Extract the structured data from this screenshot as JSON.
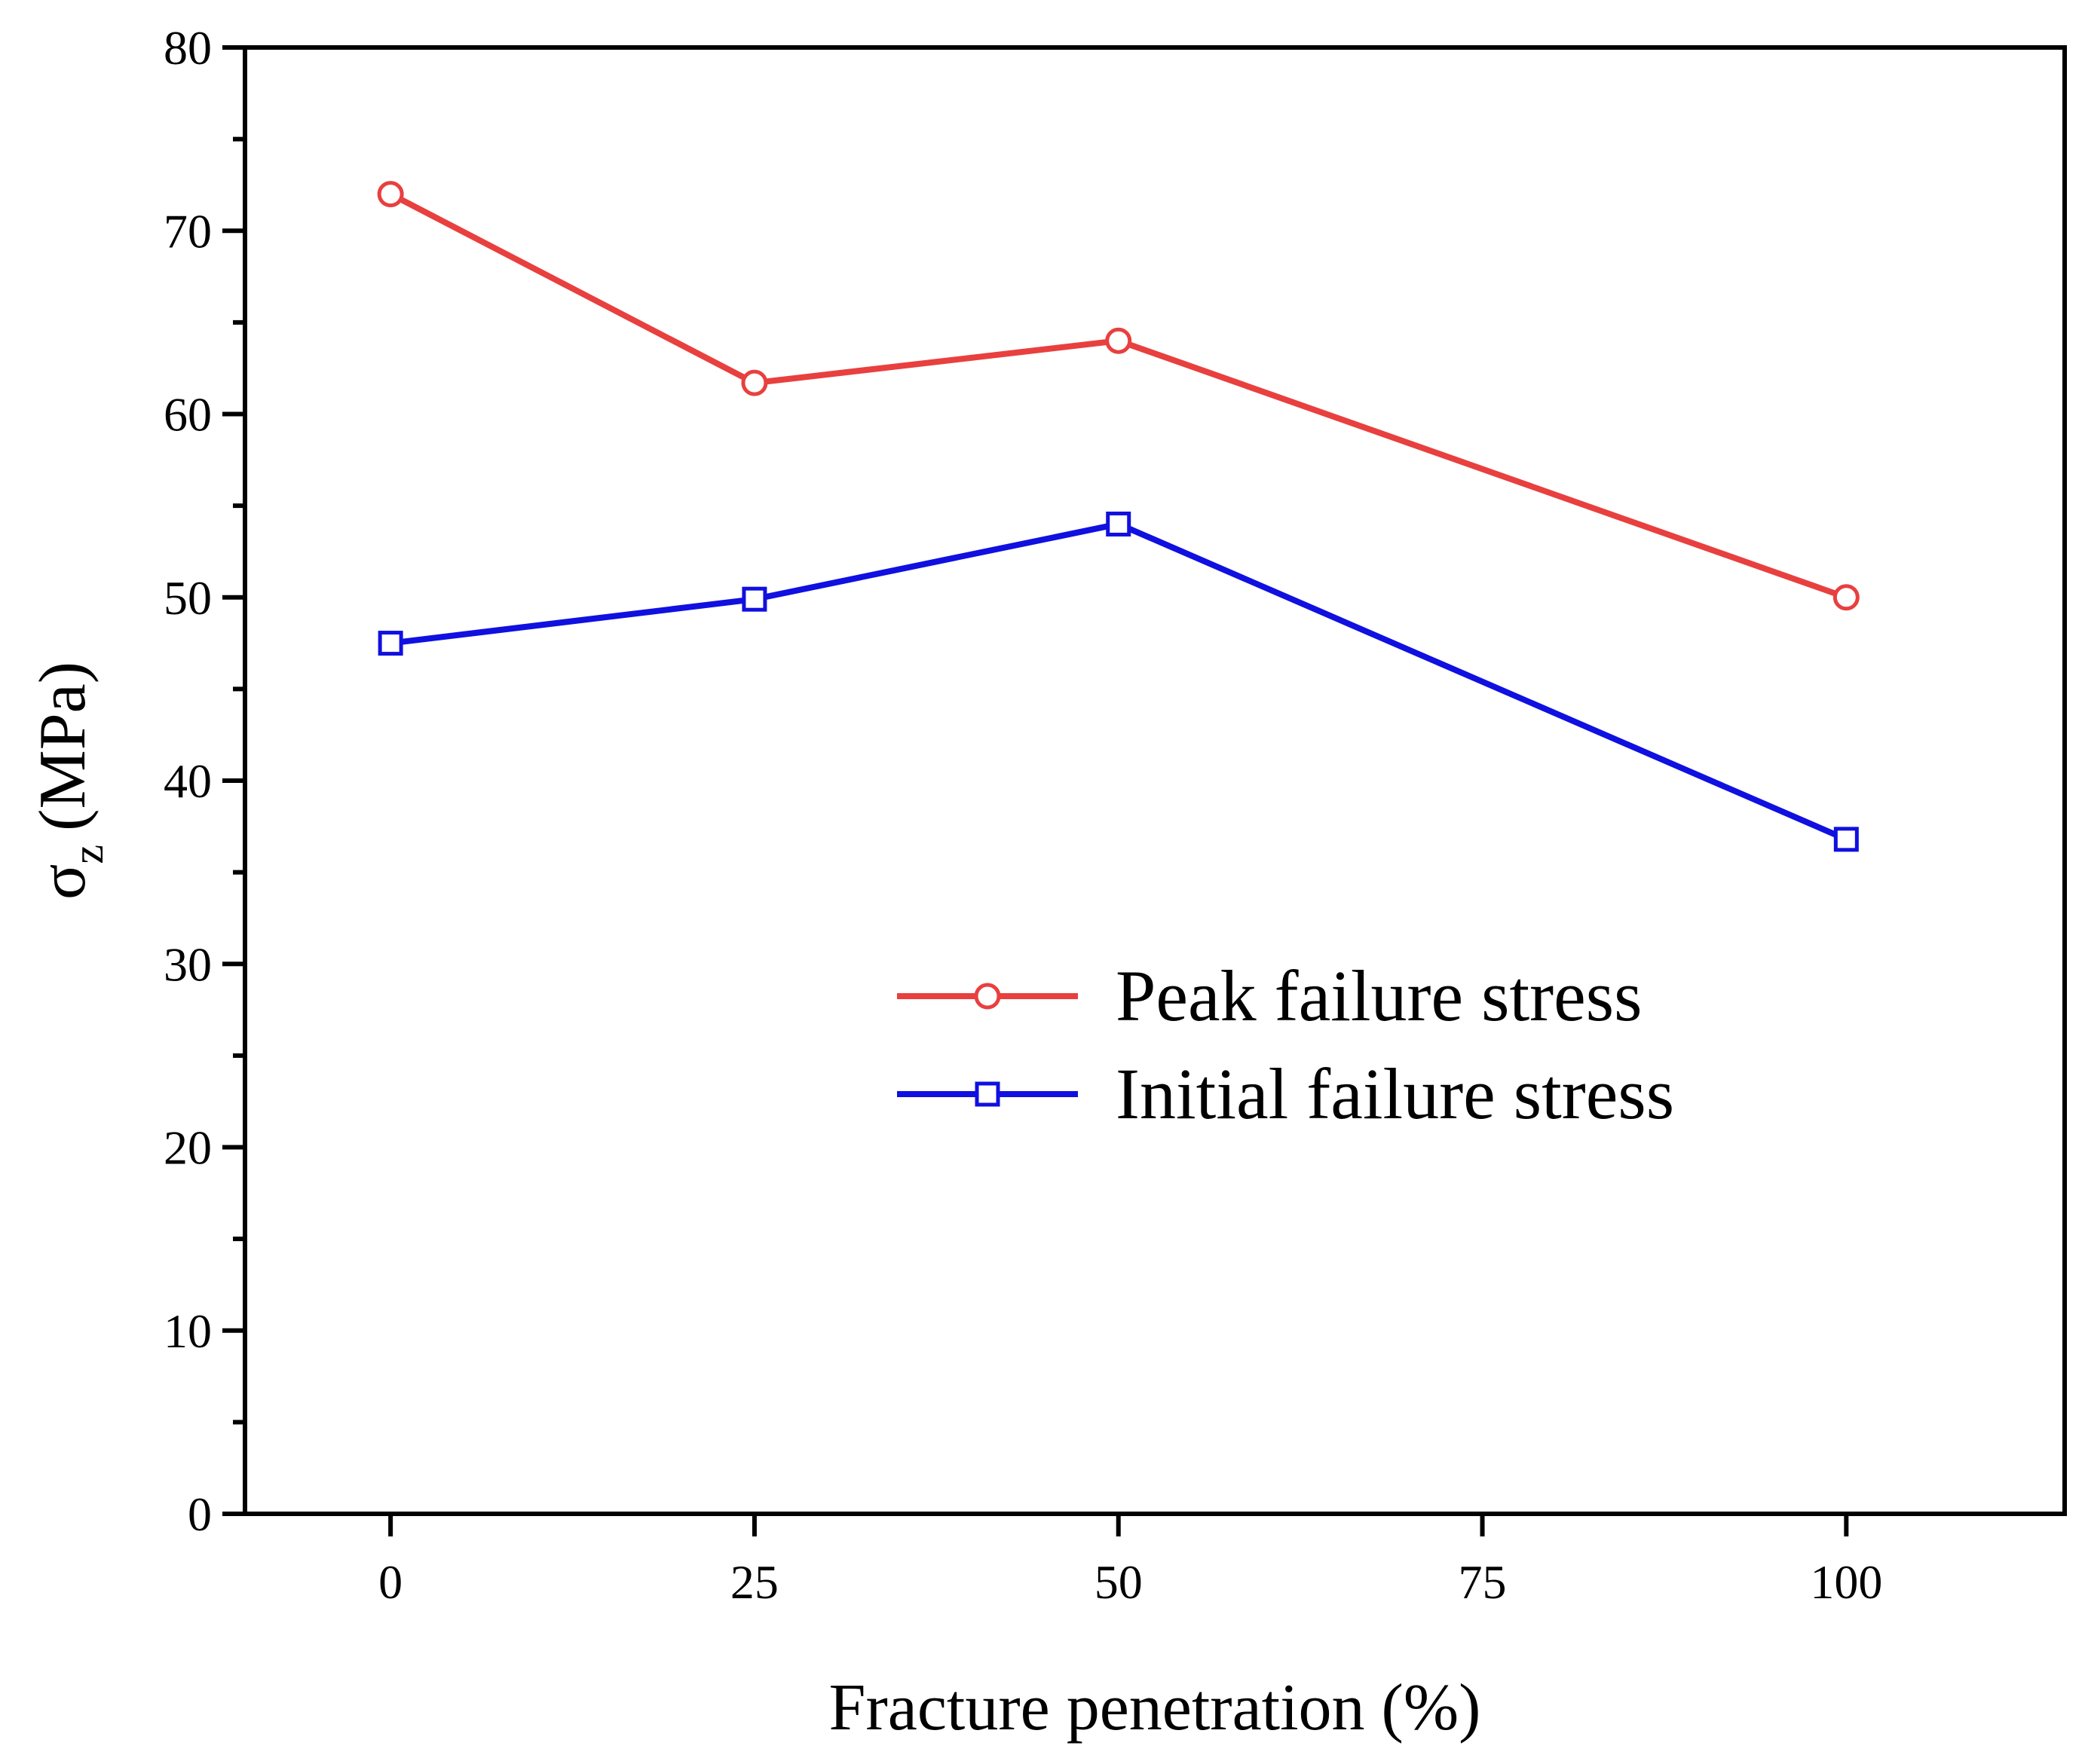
{
  "chart_data": {
    "type": "line",
    "title": "",
    "xlabel": "Fracture penetration (%)",
    "ylabel_symbol": "σ",
    "ylabel_subscript": "z",
    "ylabel_unit": "(MPa)",
    "xlim": [
      -10,
      115
    ],
    "ylim": [
      0,
      80
    ],
    "x_ticks": [
      0,
      25,
      50,
      75,
      100
    ],
    "x_tick_labels": [
      "0",
      "25",
      "50",
      "75",
      "100"
    ],
    "y_ticks": [
      0,
      10,
      20,
      30,
      40,
      50,
      60,
      70,
      80
    ],
    "y_tick_labels": [
      "0",
      "10",
      "20",
      "30",
      "40",
      "50",
      "60",
      "70",
      "80"
    ],
    "y_minor_step": 5,
    "grid": false,
    "legend_position": "center-right",
    "series": [
      {
        "name": "Peak failure stress",
        "color": "#e8403f",
        "marker": "circle",
        "x": [
          0,
          25,
          50,
          100
        ],
        "values": [
          72.0,
          61.7,
          64.0,
          50.0
        ]
      },
      {
        "name": "Initial failure stress",
        "color": "#1010e0",
        "marker": "square",
        "x": [
          0,
          25,
          50,
          100
        ],
        "values": [
          47.5,
          49.9,
          54.0,
          36.8
        ]
      }
    ]
  }
}
